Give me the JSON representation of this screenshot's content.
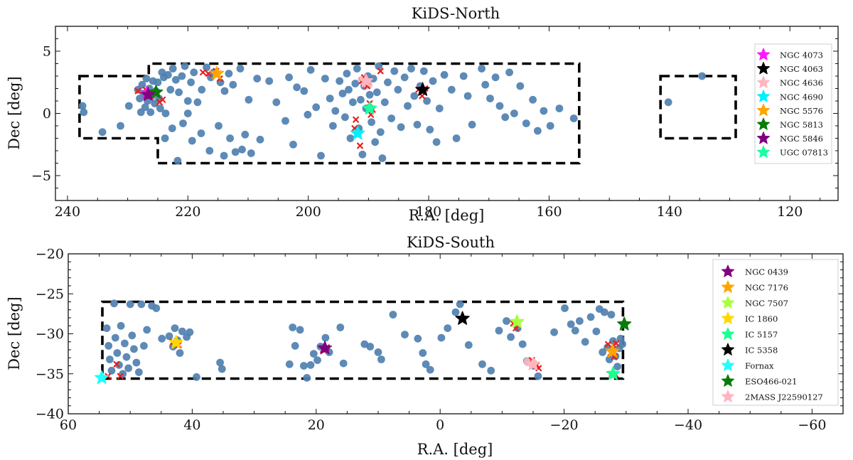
{
  "chart_data": [
    {
      "id": "north",
      "type": "scatter",
      "title": "KiDS-North",
      "xlabel": "R.A. [deg]",
      "ylabel": "Dec [deg]",
      "xlim": [
        242,
        112
      ],
      "ylim": [
        -7,
        7
      ],
      "xticks": [
        240,
        220,
        200,
        180,
        160,
        140,
        120
      ],
      "yticks": [
        -5,
        0,
        5
      ],
      "footprints": [
        [
          [
            238,
            3
          ],
          [
            226.5,
            3
          ],
          [
            226.5,
            4
          ],
          [
            155,
            4
          ],
          [
            155,
            -4
          ],
          [
            225,
            -4
          ],
          [
            225,
            -2
          ],
          [
            238,
            -2
          ]
        ],
        [
          [
            141.5,
            3
          ],
          [
            129,
            3
          ],
          [
            129,
            -2
          ],
          [
            141.5,
            -2
          ]
        ]
      ],
      "points": [
        [
          237.5,
          0.6
        ],
        [
          237.3,
          0.1
        ],
        [
          234.2,
          -1.5
        ],
        [
          231.2,
          -1.0
        ],
        [
          229.8,
          0.6
        ],
        [
          228.3,
          1.9
        ],
        [
          228.0,
          1.2
        ],
        [
          227.8,
          0.1
        ],
        [
          227.6,
          2.3
        ],
        [
          227.3,
          1.6
        ],
        [
          227.1,
          0.5
        ],
        [
          226.9,
          2.8
        ],
        [
          226.7,
          1.0
        ],
        [
          226.4,
          2.0
        ],
        [
          226.2,
          0.1
        ],
        [
          226.0,
          1.4
        ],
        [
          225.8,
          2.6
        ],
        [
          225.5,
          0.8
        ],
        [
          225.3,
          1.8
        ],
        [
          225.0,
          2.5
        ],
        [
          224.8,
          1.2
        ],
        [
          224.6,
          0.4
        ],
        [
          224.3,
          3.3
        ],
        [
          224.0,
          2.9
        ],
        [
          223.7,
          0.0
        ],
        [
          223.3,
          3.1
        ],
        [
          222.9,
          1.9
        ],
        [
          222.5,
          3.6
        ],
        [
          222.0,
          2.7
        ],
        [
          221.5,
          1.7
        ],
        [
          221.0,
          3.0
        ],
        [
          220.5,
          3.8
        ],
        [
          220.0,
          1.0
        ],
        [
          219.5,
          2.5
        ],
        [
          219.0,
          3.3
        ],
        [
          218.4,
          0.9
        ],
        [
          217.7,
          1.9
        ],
        [
          216.9,
          3.7
        ],
        [
          216.2,
          2.9
        ],
        [
          215.7,
          3.3
        ],
        [
          214.6,
          2.5
        ],
        [
          213.9,
          1.8
        ],
        [
          213.2,
          3.2
        ],
        [
          212.5,
          2.3
        ],
        [
          211.3,
          3.6
        ],
        [
          209.9,
          1.1
        ],
        [
          208.5,
          2.8
        ],
        [
          223.8,
          -2.0
        ],
        [
          222.6,
          -1.2
        ],
        [
          221.7,
          -3.8
        ],
        [
          220.8,
          -0.8
        ],
        [
          220.0,
          0.0
        ],
        [
          219.3,
          -2.2
        ],
        [
          217.8,
          -1.6
        ],
        [
          216.4,
          -3.0
        ],
        [
          214.9,
          -1.0
        ],
        [
          214.0,
          -3.4
        ],
        [
          213.0,
          -2.0
        ],
        [
          212.1,
          -3.1
        ],
        [
          211.0,
          -2.9
        ],
        [
          210.5,
          -1.7
        ],
        [
          209.5,
          -3.2
        ],
        [
          208.0,
          -2.1
        ],
        [
          206.5,
          2.6
        ],
        [
          205.3,
          0.9
        ],
        [
          203.8,
          -0.6
        ],
        [
          203.2,
          2.9
        ],
        [
          202.5,
          -2.5
        ],
        [
          201.9,
          2.1
        ],
        [
          200.7,
          1.8
        ],
        [
          200.1,
          -0.1
        ],
        [
          199.6,
          3.5
        ],
        [
          198.7,
          0.5
        ],
        [
          197.9,
          -3.4
        ],
        [
          197.2,
          2.8
        ],
        [
          196.4,
          1.2
        ],
        [
          195.9,
          -1.0
        ],
        [
          195.5,
          0.2
        ],
        [
          194.8,
          2.6
        ],
        [
          194.3,
          1.6
        ],
        [
          193.9,
          -0.3
        ],
        [
          193.6,
          3.2
        ],
        [
          193.3,
          1.9
        ],
        [
          193.0,
          -2.0
        ],
        [
          192.6,
          0.9
        ],
        [
          192.2,
          2.4
        ],
        [
          191.9,
          3.6
        ],
        [
          191.6,
          -1.2
        ],
        [
          191.3,
          1.1
        ],
        [
          191.0,
          -3.3
        ],
        [
          190.7,
          2.2
        ],
        [
          190.4,
          0.4
        ],
        [
          190.1,
          3.0
        ],
        [
          189.8,
          1.5
        ],
        [
          189.5,
          -0.7
        ],
        [
          189.2,
          2.8
        ],
        [
          188.9,
          -2.3
        ],
        [
          188.6,
          1.7
        ],
        [
          188.3,
          3.8
        ],
        [
          188.0,
          -1.5
        ],
        [
          187.7,
          -3.6
        ],
        [
          187.3,
          0.9
        ],
        [
          186.8,
          2.5
        ],
        [
          186.2,
          -0.4
        ],
        [
          185.7,
          3.4
        ],
        [
          185.1,
          1.9
        ],
        [
          184.6,
          -1.1
        ],
        [
          184.0,
          2.9
        ],
        [
          183.5,
          0.6
        ],
        [
          182.9,
          3.6
        ],
        [
          182.4,
          1.4
        ],
        [
          181.9,
          -0.9
        ],
        [
          181.4,
          2.2
        ],
        [
          180.8,
          3.4
        ],
        [
          180.3,
          1.0
        ],
        [
          179.8,
          -1.3
        ],
        [
          179.3,
          2.6
        ],
        [
          178.7,
          -2.3
        ],
        [
          178.2,
          0.4
        ],
        [
          177.4,
          3.1
        ],
        [
          176.2,
          1.9
        ],
        [
          175.4,
          -2.0
        ],
        [
          174.2,
          3.0
        ],
        [
          173.5,
          1.4
        ],
        [
          172.8,
          -0.9
        ],
        [
          171.2,
          3.6
        ],
        [
          170.6,
          2.3
        ],
        [
          169.8,
          1.2
        ],
        [
          168.9,
          2.9
        ],
        [
          168.2,
          0.6
        ],
        [
          167.3,
          -0.3
        ],
        [
          166.6,
          3.3
        ],
        [
          165.8,
          0.0
        ],
        [
          164.8,
          2.2
        ],
        [
          163.8,
          -0.8
        ],
        [
          162.7,
          1.1
        ],
        [
          161.9,
          -1.4
        ],
        [
          160.9,
          0.2
        ],
        [
          159.8,
          -1.0
        ],
        [
          158.3,
          0.4
        ],
        [
          155.9,
          -0.4
        ],
        [
          140.2,
          0.9
        ],
        [
          134.6,
          3.0
        ]
      ],
      "crosses": [
        [
          228.3,
          1.8
        ],
        [
          227.0,
          1.9
        ],
        [
          226.3,
          1.4
        ],
        [
          225.2,
          1.6
        ],
        [
          224.7,
          0.9
        ],
        [
          224.2,
          1.1
        ],
        [
          217.5,
          3.3
        ],
        [
          216.6,
          3.2
        ],
        [
          215.3,
          3.4
        ],
        [
          214.7,
          2.8
        ],
        [
          192.3,
          -1.2
        ],
        [
          192.1,
          -0.5
        ],
        [
          191.7,
          -1.7
        ],
        [
          191.4,
          -2.6
        ],
        [
          191.1,
          2.6
        ],
        [
          190.7,
          2.9
        ],
        [
          190.2,
          2.2
        ],
        [
          189.8,
          0.8
        ],
        [
          189.6,
          -0.1
        ],
        [
          189.3,
          0.3
        ],
        [
          188.0,
          3.4
        ],
        [
          181.7,
          1.9
        ],
        [
          181.1,
          1.4
        ],
        [
          180.6,
          2.0
        ]
      ],
      "pink_clusters": [
        [
          191.0,
          2.7
        ],
        [
          190.1,
          2.3
        ]
      ],
      "stars": [
        {
          "name": "NGC 4073",
          "color": "#ff19ff",
          "x": 226.8,
          "y": 1.6
        },
        {
          "name": "NGC 4063",
          "color": "#000000",
          "x": 181.0,
          "y": 1.9
        },
        {
          "name": "NGC 4636",
          "color": "#ffb6c1",
          "x": 190.4,
          "y": 2.6
        },
        {
          "name": "NGC 4690",
          "color": "#00f0ff",
          "x": 191.8,
          "y": -1.6
        },
        {
          "name": "NGC 5576",
          "color": "#ffa500",
          "x": 215.2,
          "y": 3.2
        },
        {
          "name": "NGC 5813",
          "color": "#0a7a0a",
          "x": 225.3,
          "y": 1.7
        },
        {
          "name": "NGC 5846",
          "color": "#800080",
          "x": 226.6,
          "y": 1.5
        },
        {
          "name": "UGC 07813",
          "color": "#1affa0",
          "x": 189.8,
          "y": 0.4
        }
      ]
    },
    {
      "id": "south",
      "type": "scatter",
      "title": "KiDS-South",
      "xlabel": "R.A. [deg]",
      "ylabel": "Dec [deg]",
      "xlim": [
        60,
        -65
      ],
      "ylim": [
        -40,
        -20
      ],
      "xticks": [
        60,
        40,
        20,
        0,
        -20,
        -40,
        -60
      ],
      "yticks": [
        -40,
        -35,
        -30,
        -25,
        -20
      ],
      "footprints": [
        [
          [
            54.5,
            -26
          ],
          [
            -29.5,
            -26
          ],
          [
            -29.5,
            -35.6
          ],
          [
            54.5,
            -35.6
          ]
        ]
      ],
      "points": [
        [
          53.8,
          -29.3
        ],
        [
          53.5,
          -31.5
        ],
        [
          53.3,
          -33.2
        ],
        [
          53.0,
          -34.6
        ],
        [
          52.6,
          -26.2
        ],
        [
          52.4,
          -30.5
        ],
        [
          52.1,
          -32.4
        ],
        [
          51.8,
          -33.9
        ],
        [
          51.5,
          -29.0
        ],
        [
          51.2,
          -35.0
        ],
        [
          50.9,
          -31.2
        ],
        [
          50.6,
          -32.9
        ],
        [
          50.3,
          -34.3
        ],
        [
          50.0,
          -26.3
        ],
        [
          49.7,
          -30.2
        ],
        [
          49.4,
          -31.9
        ],
        [
          49.0,
          -33.6
        ],
        [
          48.6,
          -34.8
        ],
        [
          48.2,
          -26.3
        ],
        [
          47.8,
          -31.5
        ],
        [
          47.3,
          -29.5
        ],
        [
          46.5,
          -26.5
        ],
        [
          45.8,
          -26.8
        ],
        [
          44.9,
          -30.6
        ],
        [
          43.7,
          -30.3
        ],
        [
          43.1,
          -31.6
        ],
        [
          42.8,
          -29.3
        ],
        [
          42.4,
          -30.8
        ],
        [
          42.0,
          -32.4
        ],
        [
          41.6,
          -29.7
        ],
        [
          40.9,
          -30.4
        ],
        [
          40.4,
          -29.8
        ],
        [
          39.3,
          -35.4
        ],
        [
          35.5,
          -33.6
        ],
        [
          35.2,
          -34.4
        ],
        [
          24.3,
          -33.8
        ],
        [
          23.8,
          -29.2
        ],
        [
          23.4,
          -31.5
        ],
        [
          22.6,
          -29.5
        ],
        [
          22.0,
          -34.0
        ],
        [
          21.5,
          -35.5
        ],
        [
          20.9,
          -33.9
        ],
        [
          20.4,
          -32.5
        ],
        [
          19.8,
          -33.3
        ],
        [
          19.3,
          -31.6
        ],
        [
          18.5,
          -30.5
        ],
        [
          17.9,
          -32.3
        ],
        [
          16.1,
          -29.2
        ],
        [
          15.6,
          -33.7
        ],
        [
          12.2,
          -31.3
        ],
        [
          11.3,
          -31.6
        ],
        [
          10.0,
          -32.3
        ],
        [
          9.5,
          -33.2
        ],
        [
          7.6,
          -27.6
        ],
        [
          5.7,
          -30.1
        ],
        [
          3.6,
          -30.6
        ],
        [
          2.8,
          -32.4
        ],
        [
          2.3,
          -33.8
        ],
        [
          1.6,
          -34.5
        ],
        [
          -0.2,
          -30.5
        ],
        [
          -1.2,
          -29.3
        ],
        [
          -2.5,
          -27.3
        ],
        [
          -3.2,
          -26.3
        ],
        [
          -4.6,
          -31.4
        ],
        [
          -6.8,
          -33.8
        ],
        [
          -8.2,
          -34.6
        ],
        [
          -9.5,
          -29.6
        ],
        [
          -10.7,
          -28.4
        ],
        [
          -11.4,
          -30.4
        ],
        [
          -12.5,
          -29.3
        ],
        [
          -13.3,
          -31.3
        ],
        [
          -14.0,
          -33.4
        ],
        [
          -15.1,
          -34.0
        ],
        [
          -15.8,
          -35.3
        ],
        [
          -18.4,
          -29.8
        ],
        [
          -20.1,
          -26.8
        ],
        [
          -21.1,
          -28.8
        ],
        [
          -21.8,
          -29.6
        ],
        [
          -22.5,
          -28.4
        ],
        [
          -23.4,
          -31.0
        ],
        [
          -24.3,
          -27.9
        ],
        [
          -25.2,
          -29.7
        ],
        [
          -25.7,
          -26.9
        ],
        [
          -26.2,
          -32.3
        ],
        [
          -26.5,
          -27.3
        ],
        [
          -27.0,
          -31.7
        ],
        [
          -27.3,
          -33.2
        ],
        [
          -27.6,
          -27.6
        ],
        [
          -27.9,
          -30.9
        ],
        [
          -28.3,
          -32.8
        ],
        [
          -28.6,
          -34.1
        ],
        [
          -28.9,
          -31.8
        ],
        [
          -29.1,
          -30.6
        ],
        [
          -29.4,
          -31.3
        ]
      ],
      "crosses": [
        [
          53.6,
          -35.3
        ],
        [
          52.2,
          -33.8
        ],
        [
          51.6,
          -35.3
        ],
        [
          43.1,
          -31.0
        ],
        [
          42.2,
          -31.4
        ],
        [
          18.9,
          -32.0
        ],
        [
          18.3,
          -31.7
        ],
        [
          -11.8,
          -28.7
        ],
        [
          -12.2,
          -29.3
        ],
        [
          -14.8,
          -33.3
        ],
        [
          -15.6,
          -33.9
        ],
        [
          -15.9,
          -34.3
        ],
        [
          -27.1,
          -31.3
        ],
        [
          -27.5,
          -32.4
        ],
        [
          -27.9,
          -31.9
        ],
        [
          -28.1,
          -32.9
        ],
        [
          -28.4,
          -31.2
        ],
        [
          -27.7,
          -35.0
        ],
        [
          -28.3,
          -35.1
        ]
      ],
      "pink_clusters": [
        [
          -15.0,
          -33.7
        ],
        [
          -14.2,
          -33.5
        ]
      ],
      "stars": [
        {
          "name": "NGC 0439",
          "color": "#800080",
          "x": 18.6,
          "y": -31.8
        },
        {
          "name": "NGC 7176",
          "color": "#ffa500",
          "x": -27.8,
          "y": -32.2
        },
        {
          "name": "NGC 7507",
          "color": "#a8ff3c",
          "x": -12.4,
          "y": -28.5
        },
        {
          "name": "IC 1860",
          "color": "#ffd700",
          "x": 42.6,
          "y": -31.1
        },
        {
          "name": "IC 5157",
          "color": "#1aff90",
          "x": -27.9,
          "y": -35.0
        },
        {
          "name": "IC 5358",
          "color": "#000000",
          "x": -3.6,
          "y": -28.1
        },
        {
          "name": "Fornax",
          "color": "#1fffff",
          "x": 54.6,
          "y": -35.5
        },
        {
          "name": "ESO466-021",
          "color": "#0a7a0a",
          "x": -29.7,
          "y": -28.8
        },
        {
          "name": "2MASS J22590127",
          "color": "#ffb6c1",
          "x": -15.0,
          "y": -33.8
        }
      ]
    }
  ]
}
